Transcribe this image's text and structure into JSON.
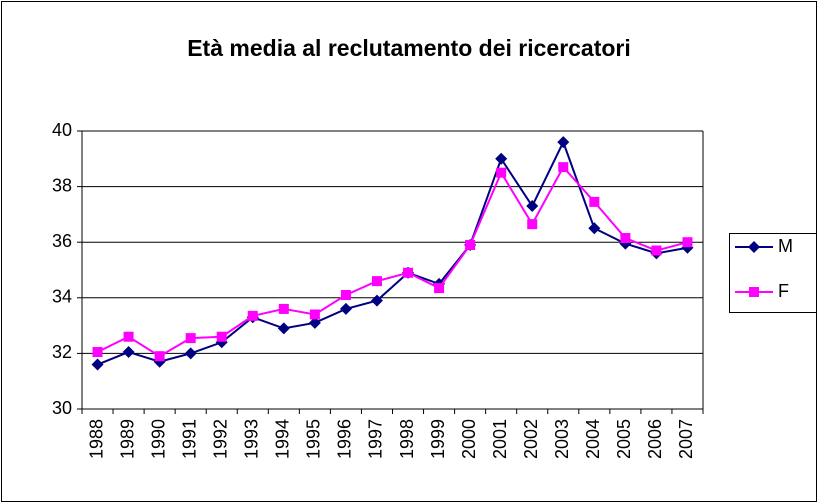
{
  "chart_data": {
    "type": "line",
    "title": "Età media al reclutamento dei ricercatori",
    "categories": [
      "1988",
      "1989",
      "1990",
      "1991",
      "1992",
      "1993",
      "1994",
      "1995",
      "1996",
      "1997",
      "1998",
      "1999",
      "2000",
      "2001",
      "2002",
      "2003",
      "2004",
      "2005",
      "2006",
      "2007"
    ],
    "series": [
      {
        "name": "M",
        "color": "#000080",
        "marker": "diamond",
        "values": [
          31.6,
          32.05,
          31.7,
          32.0,
          32.4,
          33.3,
          32.9,
          33.1,
          33.6,
          33.9,
          34.9,
          34.5,
          35.9,
          39.0,
          37.3,
          39.6,
          36.5,
          35.95,
          35.6,
          35.8
        ]
      },
      {
        "name": "F",
        "color": "#ff00ff",
        "marker": "square",
        "values": [
          32.05,
          32.6,
          31.9,
          32.55,
          32.6,
          33.35,
          33.6,
          33.4,
          34.1,
          34.6,
          34.9,
          34.35,
          35.9,
          38.5,
          36.65,
          38.7,
          37.45,
          36.15,
          35.7,
          36.0
        ]
      }
    ],
    "ylim": [
      30,
      40
    ],
    "yticks": [
      30,
      32,
      34,
      36,
      38,
      40
    ],
    "grid": true,
    "legend": "right"
  }
}
